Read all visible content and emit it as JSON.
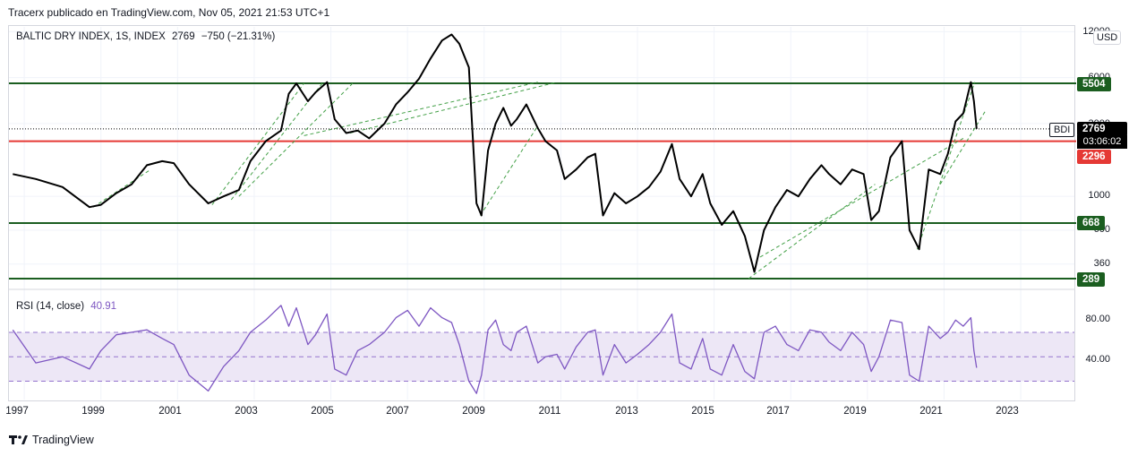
{
  "header": {
    "publish_line": "Tracerx publicado en TradingView.com, Nov 05, 2021 21:53 UTC+1"
  },
  "legend": {
    "symbol": "BALTIC DRY INDEX, 1S, INDEX",
    "last": "2769",
    "change": "−750 (−21.31%)"
  },
  "rsi_legend": {
    "label": "RSI (14, close)",
    "value": "40.91"
  },
  "price_axis": {
    "currency": "USD",
    "ticks": [
      "12000",
      "6000",
      "3000",
      "1000",
      "600",
      "360"
    ],
    "bdi_badge": "BDI",
    "price_tag": "2769",
    "countdown": "03:06:02"
  },
  "rsi_axis": {
    "ticks": [
      "80.00",
      "40.00"
    ]
  },
  "time_axis": {
    "labels": [
      "1997",
      "1999",
      "2001",
      "2003",
      "2005",
      "2007",
      "2009",
      "2011",
      "2013",
      "2015",
      "2017",
      "2019",
      "2021",
      "2023"
    ]
  },
  "brand": {
    "name": "TradingView"
  },
  "colors": {
    "support_line": "#1b5e20",
    "resistance_red": "#e53935",
    "price_line": "#000000",
    "trend_dashed": "#43a047",
    "rsi_line": "#7e57c2",
    "rsi_band": "#ede7f6"
  },
  "chart_data": [
    {
      "type": "line",
      "title": "BALTIC DRY INDEX, 1S, INDEX",
      "scale": "log",
      "ylim": [
        290,
        12500
      ],
      "xlim": [
        1996.6,
        2024.4
      ],
      "horizontal_levels": [
        {
          "value": 5504,
          "label": "5504",
          "color": "green"
        },
        {
          "value": 2296,
          "label": "2296",
          "color": "red"
        },
        {
          "value": 668,
          "label": "668",
          "color": "green"
        },
        {
          "value": 289,
          "label": "289",
          "color": "green"
        }
      ],
      "last_price": 2769,
      "series": [
        {
          "name": "BDI",
          "x": [
            1996.7,
            1997.3,
            1998.0,
            1998.7,
            1999.0,
            1999.4,
            1999.8,
            2000.2,
            2000.6,
            2000.9,
            2001.3,
            2001.8,
            2002.2,
            2002.6,
            2002.9,
            2003.3,
            2003.7,
            2003.9,
            2004.1,
            2004.4,
            2004.6,
            2004.9,
            2005.1,
            2005.4,
            2005.7,
            2006.0,
            2006.4,
            2006.7,
            2007.0,
            2007.3,
            2007.6,
            2007.9,
            2008.15,
            2008.35,
            2008.6,
            2008.8,
            2008.93,
            2009.1,
            2009.3,
            2009.5,
            2009.7,
            2009.85,
            2010.1,
            2010.4,
            2010.6,
            2010.9,
            2011.1,
            2011.4,
            2011.7,
            2011.9,
            2012.1,
            2012.4,
            2012.7,
            2013.0,
            2013.3,
            2013.6,
            2013.9,
            2014.1,
            2014.4,
            2014.7,
            2014.9,
            2015.2,
            2015.5,
            2015.8,
            2016.05,
            2016.3,
            2016.6,
            2016.9,
            2017.2,
            2017.5,
            2017.8,
            2018.0,
            2018.3,
            2018.6,
            2018.9,
            2019.1,
            2019.3,
            2019.6,
            2019.9,
            2020.1,
            2020.35,
            2020.6,
            2020.9,
            2021.1,
            2021.3,
            2021.5,
            2021.7,
            2021.78,
            2021.85
          ],
          "values": [
            1400,
            1300,
            1150,
            850,
            880,
            1050,
            1200,
            1600,
            1700,
            1650,
            1200,
            900,
            1000,
            1100,
            1700,
            2300,
            2700,
            4700,
            5500,
            4200,
            4800,
            5600,
            3200,
            2600,
            2700,
            2400,
            3000,
            4000,
            4800,
            5900,
            8000,
            10500,
            11500,
            10000,
            7000,
            900,
            750,
            2000,
            3000,
            3800,
            2900,
            3200,
            4000,
            2800,
            2300,
            2000,
            1300,
            1500,
            1800,
            1900,
            750,
            1050,
            900,
            1000,
            1150,
            1450,
            2200,
            1300,
            1000,
            1400,
            900,
            650,
            800,
            550,
            320,
            600,
            850,
            1100,
            1000,
            1300,
            1600,
            1400,
            1200,
            1500,
            1400,
            700,
            800,
            1800,
            2300,
            600,
            450,
            1500,
            1400,
            1900,
            3100,
            3500,
            5600,
            4200,
            2769
          ]
        }
      ]
    },
    {
      "type": "line",
      "title": "RSI (14, close)",
      "ylim": [
        15,
        100
      ],
      "bands": [
        30,
        50,
        70
      ],
      "last_value": 40.91,
      "series": [
        {
          "name": "RSI",
          "x": [
            1996.7,
            1997.3,
            1998.0,
            1998.7,
            1999.0,
            1999.4,
            1999.8,
            2000.2,
            2000.6,
            2000.9,
            2001.3,
            2001.8,
            2002.2,
            2002.6,
            2002.9,
            2003.3,
            2003.7,
            2003.9,
            2004.1,
            2004.4,
            2004.6,
            2004.9,
            2005.1,
            2005.4,
            2005.7,
            2006.0,
            2006.4,
            2006.7,
            2007.0,
            2007.3,
            2007.6,
            2007.9,
            2008.15,
            2008.35,
            2008.6,
            2008.8,
            2008.93,
            2009.1,
            2009.3,
            2009.5,
            2009.7,
            2009.85,
            2010.1,
            2010.4,
            2010.6,
            2010.9,
            2011.1,
            2011.4,
            2011.7,
            2011.9,
            2012.1,
            2012.4,
            2012.7,
            2013.0,
            2013.3,
            2013.6,
            2013.9,
            2014.1,
            2014.4,
            2014.7,
            2014.9,
            2015.2,
            2015.5,
            2015.8,
            2016.05,
            2016.3,
            2016.6,
            2016.9,
            2017.2,
            2017.5,
            2017.8,
            2018.0,
            2018.3,
            2018.6,
            2018.9,
            2019.1,
            2019.3,
            2019.6,
            2019.9,
            2020.1,
            2020.35,
            2020.6,
            2020.9,
            2021.1,
            2021.3,
            2021.5,
            2021.7,
            2021.78,
            2021.85
          ],
          "values": [
            72,
            45,
            50,
            40,
            55,
            68,
            70,
            72,
            65,
            60,
            35,
            22,
            42,
            55,
            70,
            80,
            92,
            75,
            90,
            60,
            68,
            85,
            40,
            35,
            55,
            60,
            70,
            82,
            88,
            75,
            90,
            82,
            78,
            60,
            30,
            20,
            35,
            72,
            80,
            60,
            55,
            70,
            75,
            45,
            50,
            52,
            40,
            58,
            70,
            72,
            35,
            60,
            45,
            52,
            60,
            70,
            85,
            45,
            40,
            65,
            40,
            35,
            60,
            38,
            32,
            70,
            75,
            60,
            55,
            72,
            70,
            62,
            55,
            70,
            60,
            38,
            50,
            80,
            78,
            35,
            30,
            75,
            65,
            70,
            80,
            75,
            82,
            55,
            41
          ]
        }
      ]
    }
  ]
}
